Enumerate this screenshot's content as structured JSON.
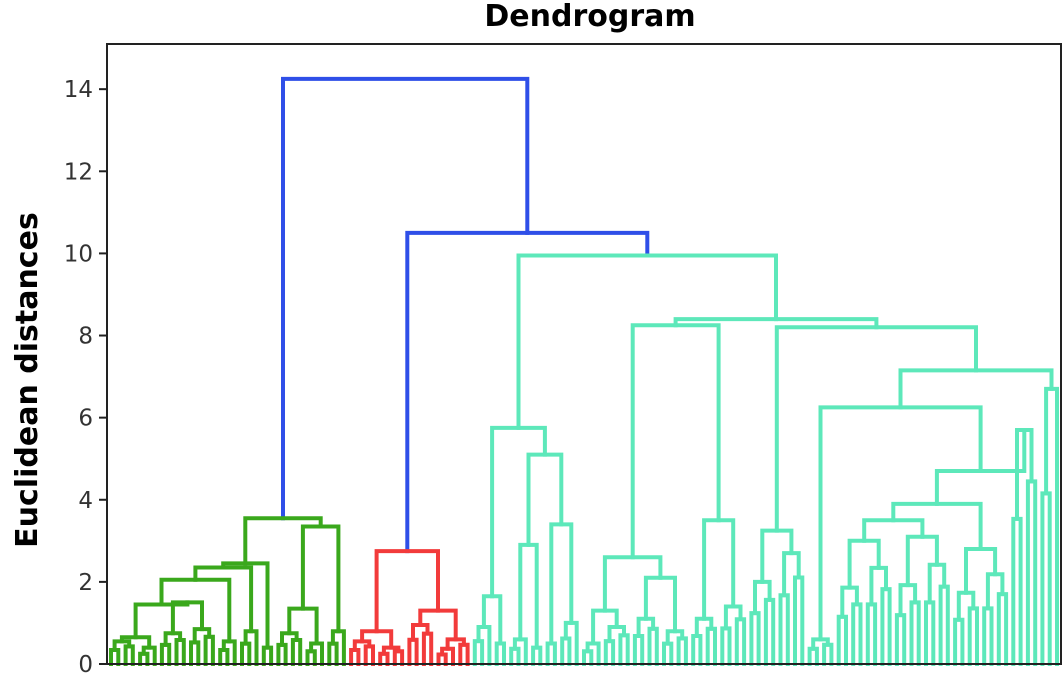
{
  "chart_data": {
    "type": "dendrogram",
    "title": "Dendrogram",
    "xlabel": "",
    "ylabel": "Euclidean distances",
    "ylim": [
      0,
      15.1
    ],
    "yticks": [
      0,
      2,
      4,
      6,
      8,
      10,
      12,
      14
    ],
    "grid": false,
    "colors": {
      "green": "#3aa81c",
      "red": "#f23b3b",
      "teal": "#5de8ba",
      "blue": "#2f4fe8",
      "axis": "#222222"
    },
    "tree": {
      "h": 14.25,
      "c": "blue",
      "children": [
        {
          "h": 3.55,
          "c": "green",
          "children": [
            {
              "h": 2.45,
              "c": "green",
              "children": [
                {
                  "h": 2.35,
                  "c": "green",
                  "children": [
                    {
                      "h": 2.05,
                      "c": "green",
                      "children": [
                        {
                          "h": 1.45,
                          "c": "green",
                          "children": [
                            {
                              "h": 0.65,
                              "c": "green",
                              "children": [
                                {
                                  "h": 0.55,
                                  "c": "green",
                                  "n": 4
                                },
                                {
                                  "h": 0.4,
                                  "c": "green",
                                  "n": 3
                                }
                              ]
                            },
                            {
                              "h": 1.5,
                              "c": "green",
                              "children": [
                                {
                                  "h": 0.75,
                                  "c": "green",
                                  "n": 4
                                },
                                {
                                  "h": 0.85,
                                  "c": "green",
                                  "n": 4
                                }
                              ]
                            }
                          ]
                        },
                        {
                          "h": 0.55,
                          "c": "green",
                          "n": 3
                        }
                      ]
                    },
                    {
                      "h": 0.8,
                      "c": "green",
                      "n": 3
                    }
                  ]
                },
                {
                  "h": 0.4,
                  "c": "green",
                  "n": 2
                }
              ]
            },
            {
              "h": 3.35,
              "c": "green",
              "children": [
                {
                  "h": 1.35,
                  "c": "green",
                  "children": [
                    {
                      "h": 0.75,
                      "c": "green",
                      "n": 4
                    },
                    {
                      "h": 0.5,
                      "c": "green",
                      "n": 3
                    }
                  ]
                },
                {
                  "h": 0.8,
                  "c": "green",
                  "n": 3
                }
              ]
            }
          ]
        },
        {
          "h": 10.5,
          "c": "blue",
          "children": [
            {
              "h": 2.75,
              "c": "red",
              "children": [
                {
                  "h": 0.8,
                  "c": "red",
                  "children": [
                    {
                      "h": 0.55,
                      "c": "red",
                      "n": 4
                    },
                    {
                      "h": 0.4,
                      "c": "red",
                      "n": 4
                    }
                  ]
                },
                {
                  "h": 1.3,
                  "c": "red",
                  "children": [
                    {
                      "h": 0.95,
                      "c": "red",
                      "n": 4
                    },
                    {
                      "h": 0.6,
                      "c": "red",
                      "n": 5
                    }
                  ]
                }
              ]
            },
            {
              "h": 9.95,
              "c": "teal",
              "children": [
                {
                  "h": 5.75,
                  "c": "teal",
                  "children": [
                    {
                      "h": 1.65,
                      "c": "teal",
                      "children": [
                        {
                          "h": 0.9,
                          "c": "teal",
                          "n": 3
                        },
                        {
                          "h": 0.5,
                          "c": "teal",
                          "n": 2
                        }
                      ]
                    },
                    {
                      "h": 5.1,
                      "c": "teal",
                      "children": [
                        {
                          "h": 2.9,
                          "c": "teal",
                          "children": [
                            {
                              "h": 0.6,
                              "c": "teal",
                              "n": 3
                            },
                            {
                              "h": 0.4,
                              "c": "teal",
                              "n": 2
                            }
                          ]
                        },
                        {
                          "h": 3.4,
                          "c": "teal",
                          "children": [
                            {
                              "h": 0.5,
                              "c": "teal",
                              "n": 2
                            },
                            {
                              "h": 1.0,
                              "c": "teal",
                              "n": 3
                            }
                          ]
                        }
                      ]
                    }
                  ]
                },
                {
                  "h": 8.4,
                  "c": "teal",
                  "children": [
                    {
                      "h": 8.25,
                      "c": "teal",
                      "children": [
                        {
                          "h": 2.6,
                          "c": "teal",
                          "children": [
                            {
                              "h": 1.3,
                              "c": "teal",
                              "children": [
                                {
                                  "h": 0.5,
                                  "c": "teal",
                                  "n": 3
                                },
                                {
                                  "h": 0.9,
                                  "c": "teal",
                                  "n": 4
                                }
                              ]
                            },
                            {
                              "h": 2.1,
                              "c": "teal",
                              "children": [
                                {
                                  "h": 1.1,
                                  "c": "teal",
                                  "n": 4
                                },
                                {
                                  "h": 0.8,
                                  "c": "teal",
                                  "n": 4
                                }
                              ]
                            }
                          ]
                        },
                        {
                          "h": 3.5,
                          "c": "teal",
                          "children": [
                            {
                              "h": 1.1,
                              "c": "teal",
                              "n": 4
                            },
                            {
                              "h": 1.4,
                              "c": "teal",
                              "n": 4
                            }
                          ]
                        }
                      ]
                    },
                    {
                      "h": 8.2,
                      "c": "teal",
                      "children": [
                        {
                          "h": 3.25,
                          "c": "teal",
                          "children": [
                            {
                              "h": 2.0,
                              "c": "teal",
                              "n": 4
                            },
                            {
                              "h": 2.7,
                              "c": "teal",
                              "n": 4
                            }
                          ]
                        },
                        {
                          "h": 7.15,
                          "c": "teal",
                          "children": [
                            {
                              "h": 6.25,
                              "c": "teal",
                              "children": [
                                {
                                  "h": 0.6,
                                  "c": "teal",
                                  "n": 4
                                },
                                {
                                  "h": 4.7,
                                  "c": "teal",
                                  "children": [
                                    {
                                      "h": 3.9,
                                      "c": "teal",
                                      "children": [
                                        {
                                          "h": 3.5,
                                          "c": "teal",
                                          "children": [
                                            {
                                              "h": 3.0,
                                              "c": "teal",
                                              "n": 8
                                            },
                                            {
                                              "h": 3.1,
                                              "c": "teal",
                                              "n": 8
                                            }
                                          ]
                                        },
                                        {
                                          "h": 2.8,
                                          "c": "teal",
                                          "n": 8
                                        }
                                      ]
                                    },
                                    {
                                      "h": 5.7,
                                      "c": "teal",
                                      "n": 4
                                    }
                                  ]
                                }
                              ]
                            },
                            {
                              "h": 6.7,
                              "c": "teal",
                              "n": 3
                            }
                          ]
                        }
                      ]
                    }
                  ]
                }
              ]
            }
          ]
        }
      ]
    }
  }
}
